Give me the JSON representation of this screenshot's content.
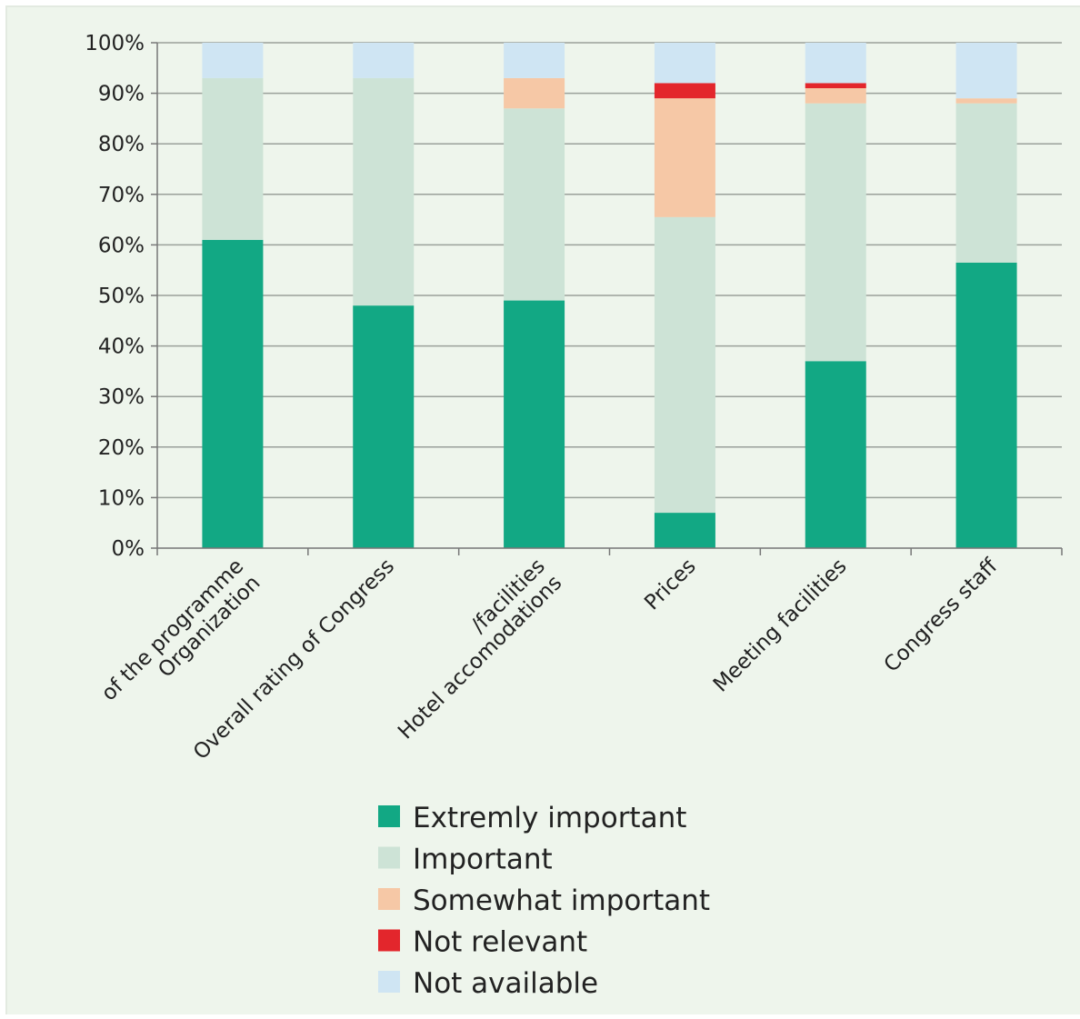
{
  "chart_data": {
    "type": "bar",
    "stacked": true,
    "percent": true,
    "title": "",
    "xlabel": "",
    "ylabel": "",
    "ylim": [
      0,
      100
    ],
    "yticks": [
      "0%",
      "10%",
      "20%",
      "30%",
      "40%",
      "50%",
      "60%",
      "70%",
      "80%",
      "90%",
      "100%"
    ],
    "grid": true,
    "legend_position": "bottom",
    "categories": [
      [
        "Organization",
        "of the programme"
      ],
      [
        "Overall rating of Congress"
      ],
      [
        "Hotel accomodations",
        "/facilities"
      ],
      [
        "Prices"
      ],
      [
        "Meeting facilities"
      ],
      [
        "Congress staff"
      ]
    ],
    "series": [
      {
        "name": "Extremly important",
        "color": "#12a884",
        "values": [
          61,
          48,
          49,
          7,
          37,
          56.5
        ]
      },
      {
        "name": "Important",
        "color": "#cde3d6",
        "values": [
          32,
          45,
          38,
          58.5,
          51,
          31.5
        ]
      },
      {
        "name": "Somewhat important",
        "color": "#f6c8a6",
        "values": [
          0,
          0,
          6,
          23.5,
          3,
          1
        ]
      },
      {
        "name": "Not relevant",
        "color": "#e3262c",
        "values": [
          0,
          0,
          0,
          3,
          1,
          0
        ]
      },
      {
        "name": "Not available",
        "color": "#cfe5f3",
        "values": [
          7,
          7,
          7,
          8,
          8,
          11
        ]
      }
    ]
  }
}
